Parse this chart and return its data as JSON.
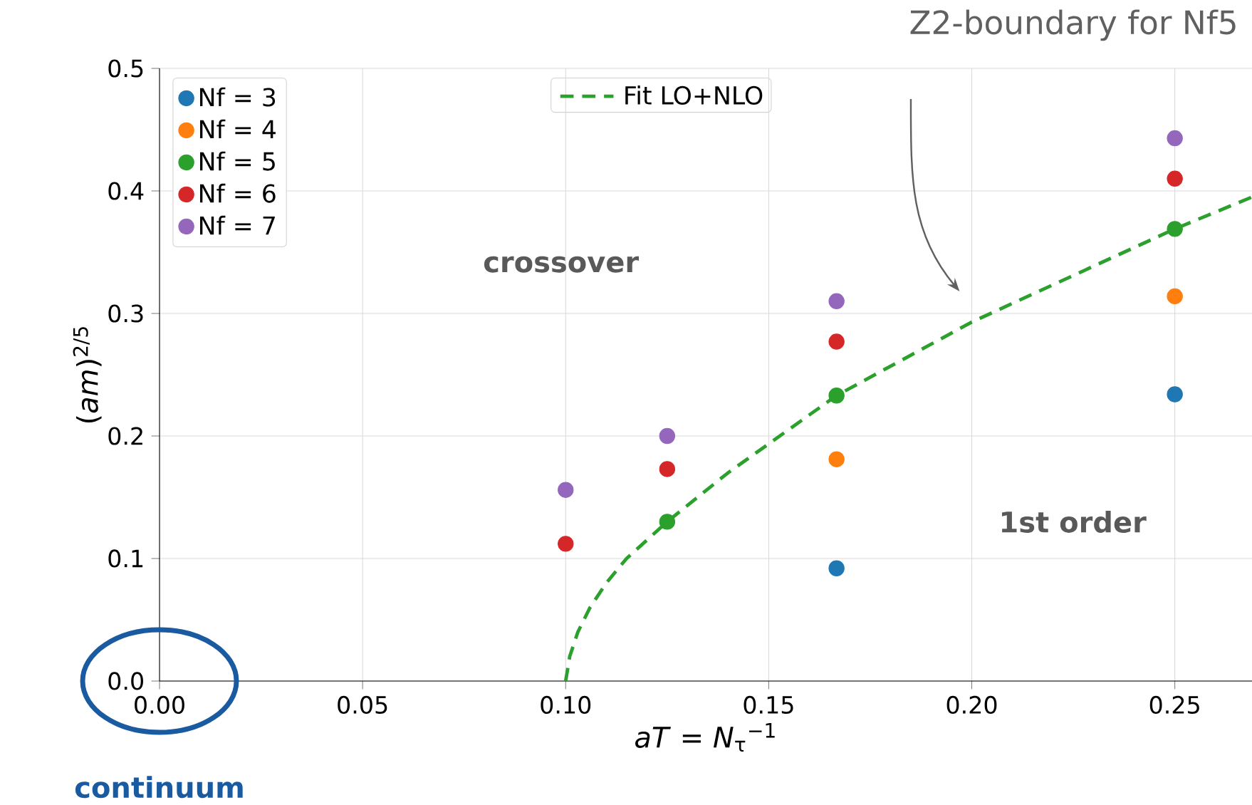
{
  "chart_data": {
    "type": "scatter",
    "title": "Z2-boundary for Nf5",
    "xlabel": "*aT* = *N*$_{τ}$$^{−1}$",
    "ylabel": "(*am*)$^{2/5}$",
    "xlim": [
      0,
      0.269
    ],
    "ylim": [
      0,
      0.5
    ],
    "xticks": [
      {
        "value": 0,
        "label": "0.00"
      },
      {
        "value": 0.05,
        "label": "0.05"
      },
      {
        "value": 0.1,
        "label": "0.10"
      },
      {
        "value": 0.15,
        "label": "0.15"
      },
      {
        "value": 0.2,
        "label": "0.20"
      },
      {
        "value": 0.25,
        "label": "0.25"
      }
    ],
    "yticks": [
      {
        "value": 0,
        "label": "0.0"
      },
      {
        "value": 0.1,
        "label": "0.1"
      },
      {
        "value": 0.2,
        "label": "0.2"
      },
      {
        "value": 0.3,
        "label": "0.3"
      },
      {
        "value": 0.4,
        "label": "0.4"
      },
      {
        "value": 0.5,
        "label": "0.5"
      }
    ],
    "grid": true,
    "legend": "top left",
    "series": [
      {
        "name": "Nf = 3",
        "marker": "circle",
        "color": "#1f77b4",
        "x": [
          0.1667,
          0.25
        ],
        "values": [
          0.092,
          0.234
        ]
      },
      {
        "name": "Nf = 4",
        "marker": "circle",
        "color": "#ff7f0e",
        "x": [
          0.1667,
          0.25
        ],
        "values": [
          0.181,
          0.314
        ]
      },
      {
        "name": "Nf = 5",
        "marker": "circle",
        "color": "#2ca02c",
        "x": [
          0.125,
          0.1667,
          0.25
        ],
        "values": [
          0.13,
          0.233,
          0.369
        ]
      },
      {
        "name": "Nf = 6",
        "marker": "circle",
        "color": "#d62728",
        "x": [
          0.1,
          0.125,
          0.1667,
          0.25
        ],
        "values": [
          0.112,
          0.173,
          0.277,
          0.41
        ]
      },
      {
        "name": "Nf = 7",
        "marker": "circle",
        "color": "#9467bd",
        "x": [
          0.1,
          0.125,
          0.1667,
          0.25
        ],
        "values": [
          0.156,
          0.2,
          0.31,
          0.443
        ]
      },
      {
        "name": "Fit LO+NLO",
        "type": "line",
        "marker": "none",
        "line_style": "dashed",
        "color": "#2ca02c",
        "x": [
          0.1,
          0.101,
          0.103,
          0.106,
          0.11,
          0.115,
          0.125,
          0.14,
          0.1667,
          0.2,
          0.25,
          0.269
        ],
        "values": [
          0,
          0.02,
          0.04,
          0.06,
          0.08,
          0.1,
          0.13,
          0.17,
          0.233,
          0.293,
          0.369,
          0.395
        ]
      }
    ],
    "annotations": [
      "crossover",
      "1st order",
      "continuum"
    ]
  }
}
